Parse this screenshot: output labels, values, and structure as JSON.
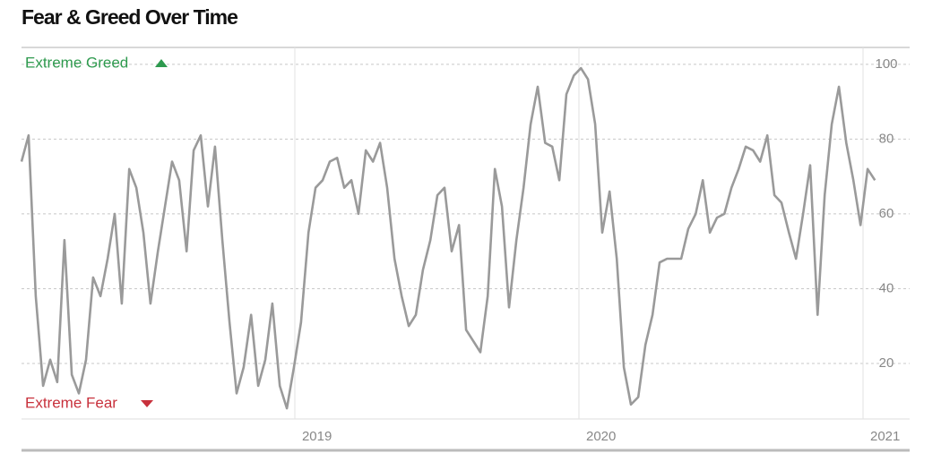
{
  "chart_data": {
    "type": "line",
    "title": "Fear & Greed Over Time",
    "annotations": {
      "top": "Extreme Greed",
      "bottom": "Extreme Fear"
    },
    "x": [
      2018.038,
      2018.063,
      2018.088,
      2018.114,
      2018.139,
      2018.164,
      2018.189,
      2018.215,
      2018.24,
      2018.265,
      2018.29,
      2018.316,
      2018.341,
      2018.366,
      2018.391,
      2018.417,
      2018.442,
      2018.467,
      2018.492,
      2018.518,
      2018.543,
      2018.568,
      2018.593,
      2018.619,
      2018.644,
      2018.669,
      2018.694,
      2018.719,
      2018.745,
      2018.77,
      2018.795,
      2018.82,
      2018.846,
      2018.871,
      2018.896,
      2018.921,
      2018.947,
      2018.972,
      2018.997,
      2019.022,
      2019.048,
      2019.073,
      2019.098,
      2019.123,
      2019.149,
      2019.174,
      2019.199,
      2019.224,
      2019.25,
      2019.275,
      2019.3,
      2019.325,
      2019.351,
      2019.376,
      2019.401,
      2019.426,
      2019.451,
      2019.477,
      2019.502,
      2019.527,
      2019.552,
      2019.578,
      2019.603,
      2019.628,
      2019.653,
      2019.679,
      2019.704,
      2019.729,
      2019.754,
      2019.78,
      2019.805,
      2019.83,
      2019.855,
      2019.881,
      2019.906,
      2019.931,
      2019.956,
      2019.982,
      2020.007,
      2020.032,
      2020.057,
      2020.082,
      2020.108,
      2020.133,
      2020.158,
      2020.183,
      2020.209,
      2020.234,
      2020.259,
      2020.284,
      2020.31,
      2020.335,
      2020.36,
      2020.385,
      2020.411,
      2020.436,
      2020.461,
      2020.486,
      2020.512,
      2020.537,
      2020.562,
      2020.587,
      2020.613,
      2020.638,
      2020.663,
      2020.688,
      2020.713,
      2020.739,
      2020.764,
      2020.789,
      2020.814,
      2020.84,
      2020.865,
      2020.89,
      2020.915,
      2020.941,
      2020.966,
      2020.991,
      2021.016,
      2021.042
    ],
    "series": [
      {
        "color": "#9a9a9a",
        "values": [
          74,
          81,
          38,
          14,
          21,
          15,
          53,
          17,
          12,
          21,
          43,
          38,
          48,
          60,
          36,
          72,
          67,
          55,
          36,
          50,
          62,
          74,
          69,
          50,
          77,
          81,
          62,
          78,
          53,
          31,
          12,
          19,
          33,
          14,
          21,
          36,
          14,
          8,
          19,
          31,
          55,
          67,
          69,
          74,
          75,
          67,
          69,
          60,
          77,
          74,
          79,
          67,
          48,
          38,
          30,
          33,
          45,
          53,
          65,
          67,
          50,
          57,
          29,
          26,
          23,
          38,
          72,
          62,
          35,
          53,
          67,
          84,
          94,
          79,
          78,
          69,
          92,
          97,
          99,
          96,
          84,
          55,
          66,
          48,
          19,
          9,
          11,
          25,
          33,
          47,
          48,
          48,
          48,
          56,
          60,
          69,
          55,
          59,
          60,
          67,
          72,
          78,
          77,
          74,
          81,
          65,
          63,
          55,
          48,
          60,
          73,
          33,
          65,
          84,
          94,
          79,
          69,
          57,
          72,
          69
        ]
      }
    ],
    "xlim": [
      2018.038,
      2021.164
    ],
    "xticks": [
      2019,
      2020,
      2021
    ],
    "ylim": [
      5,
      105
    ],
    "yticks": [
      20,
      40,
      60,
      80,
      100
    ],
    "grid": true
  }
}
